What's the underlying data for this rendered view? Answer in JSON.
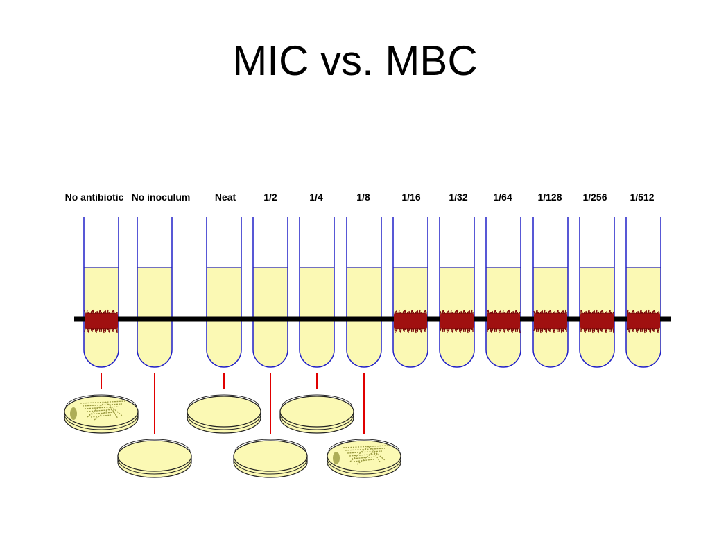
{
  "title": "MIC vs. MBC",
  "tubes": [
    {
      "label": "No antibiotic",
      "growth": true
    },
    {
      "label": "No inoculum",
      "growth": false
    },
    {
      "label": "Neat",
      "growth": false
    },
    {
      "label": "1/2",
      "growth": false
    },
    {
      "label": "1/4",
      "growth": false
    },
    {
      "label": "1/8",
      "growth": false
    },
    {
      "label": "1/16",
      "growth": true
    },
    {
      "label": "1/32",
      "growth": true
    },
    {
      "label": "1/64",
      "growth": true
    },
    {
      "label": "1/128",
      "growth": true
    },
    {
      "label": "1/256",
      "growth": true
    },
    {
      "label": "1/512",
      "growth": true
    }
  ],
  "plates": [
    {
      "tube": "No antibiotic",
      "row": "upper",
      "colonies": true
    },
    {
      "tube": "No inoculum",
      "row": "lower",
      "colonies": false
    },
    {
      "tube": "Neat",
      "row": "upper",
      "colonies": false
    },
    {
      "tube": "1/2",
      "row": "lower",
      "colonies": false
    },
    {
      "tube": "1/4",
      "row": "upper",
      "colonies": false
    },
    {
      "tube": "1/8",
      "row": "lower",
      "colonies": true
    }
  ],
  "colors": {
    "tube_outline": "#2020c8",
    "medium": "#fbf9b4",
    "growth": "#a01010",
    "growth_dark": "#780808",
    "line": "#000000",
    "connector": "#e00000",
    "plate_fill": "#fbf9b4",
    "plate_outline": "#222222",
    "colony": "#9a9a40"
  }
}
